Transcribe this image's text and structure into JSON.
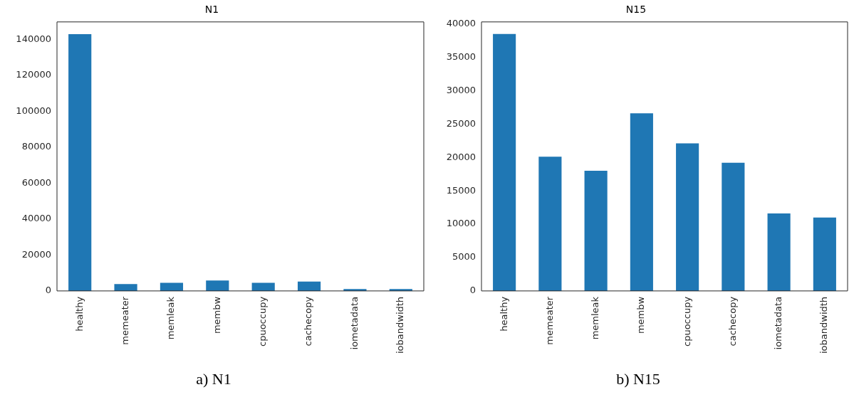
{
  "chart_data": [
    {
      "type": "bar",
      "title": "N1",
      "categories": [
        "healthy",
        "memeater",
        "memleak",
        "membw",
        "cpuoccupy",
        "cachecopy",
        "iometadata",
        "iobandwidth"
      ],
      "values": [
        142900,
        3800,
        4500,
        5800,
        4500,
        5200,
        1000,
        1000
      ],
      "color": "#1f77b4",
      "ylim": [
        0,
        149700
      ],
      "yticks": [
        0,
        20000,
        40000,
        60000,
        80000,
        100000,
        120000,
        140000
      ],
      "grid": false,
      "annotations": [
        "a) N1"
      ]
    },
    {
      "type": "bar",
      "title": "N15",
      "categories": [
        "healthy",
        "memeater",
        "memleak",
        "membw",
        "cpuoccupy",
        "cachecopy",
        "iometadata",
        "iobandwidth"
      ],
      "values": [
        38500,
        20100,
        18000,
        26600,
        22100,
        19200,
        11600,
        11000
      ],
      "color": "#1f77b4",
      "ylim": [
        0,
        40300
      ],
      "yticks": [
        0,
        5000,
        10000,
        15000,
        20000,
        25000,
        30000,
        35000,
        40000
      ],
      "grid": false,
      "annotations": [
        "b) N15"
      ]
    }
  ]
}
